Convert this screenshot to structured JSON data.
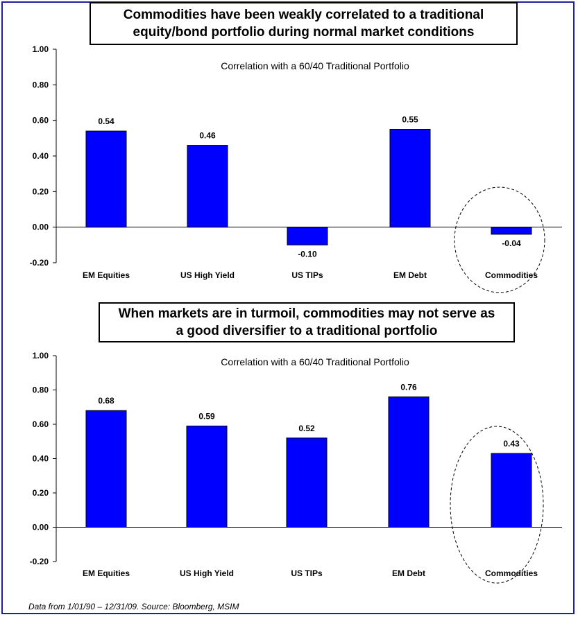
{
  "footnote": "Data from 1/01/90 – 12/31/09.   Source: Bloomberg, MSIM",
  "colors": {
    "bar": "#0000ff",
    "frame": "#1f1fa0",
    "text": "#000000"
  },
  "chart_data": [
    {
      "type": "bar",
      "title": "Commodities have been weakly correlated to a traditional\nequity/bond portfolio during normal market conditions",
      "subtitle": "Correlation with a 60/40 Traditional Portfolio",
      "categories": [
        "EM Equities",
        "US High Yield",
        "US TIPs",
        "EM Debt",
        "Commodities"
      ],
      "values": [
        0.54,
        0.46,
        -0.1,
        0.55,
        -0.04
      ],
      "value_labels": [
        "0.54",
        "0.46",
        "-0.10",
        "0.55",
        "-0.04"
      ],
      "ylim": [
        -0.2,
        1.0
      ],
      "yticks": [
        "1.00",
        "0.80",
        "0.60",
        "0.40",
        "0.20",
        "0.00",
        "-0.20"
      ],
      "ytick_values": [
        1.0,
        0.8,
        0.6,
        0.4,
        0.2,
        0.0,
        -0.2
      ],
      "highlight": "Commodities",
      "grid": false
    },
    {
      "type": "bar",
      "title": "When markets are in turmoil, commodities may not serve as\na good diversifier to a traditional portfolio",
      "subtitle": "Correlation with a 60/40 Traditional Portfolio",
      "categories": [
        "EM Equities",
        "US High Yield",
        "US TIPs",
        "EM Debt",
        "Commodities"
      ],
      "values": [
        0.68,
        0.59,
        0.52,
        0.76,
        0.43
      ],
      "value_labels": [
        "0.68",
        "0.59",
        "0.52",
        "0.76",
        "0.43"
      ],
      "ylim": [
        -0.2,
        1.0
      ],
      "yticks": [
        "1.00",
        "0.80",
        "0.60",
        "0.40",
        "0.20",
        "0.00",
        "-0.20"
      ],
      "ytick_values": [
        1.0,
        0.8,
        0.6,
        0.4,
        0.2,
        0.0,
        -0.2
      ],
      "highlight": "Commodities",
      "grid": false
    }
  ]
}
